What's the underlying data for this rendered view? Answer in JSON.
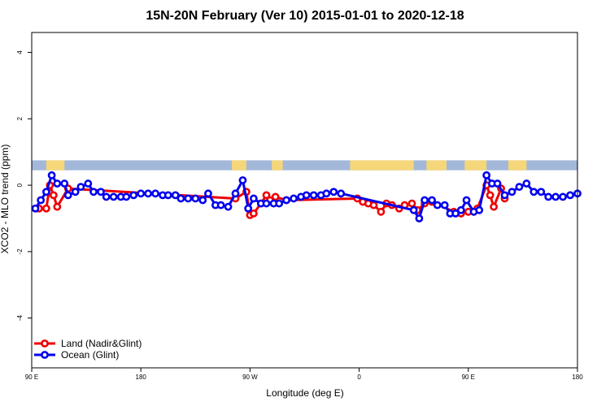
{
  "chart_data": {
    "type": "line",
    "title": "15N-20N February (Ver 10)   2015-01-01 to 2020-12-18",
    "xlabel": "Longitude (deg E)",
    "ylabel": "XCO2 - MLO trend (ppm)",
    "xlim": [
      90,
      390
    ],
    "ylim": [
      -5.5,
      4.6
    ],
    "x_ticks": [
      {
        "value": 90,
        "label": "90 E"
      },
      {
        "value": 150,
        "label": "180"
      },
      {
        "value": 210,
        "label": "90 W"
      },
      {
        "value": 270,
        "label": "0"
      },
      {
        "value": 330,
        "label": "90 E"
      },
      {
        "value": 390,
        "label": "180"
      }
    ],
    "y_ticks": [
      {
        "value": -4,
        "label": "-4"
      },
      {
        "value": -2,
        "label": "-2"
      },
      {
        "value": 0,
        "label": "0"
      },
      {
        "value": 2,
        "label": "2"
      },
      {
        "value": 4,
        "label": "4"
      }
    ],
    "grid": false,
    "legend_position": "bottom-left",
    "land_band": {
      "y_range": [
        0.45,
        0.75
      ],
      "ocean_color": "#a3b8d9",
      "land_color": "#f5d77a",
      "land_segments": [
        [
          98,
          108
        ],
        [
          200,
          208
        ],
        [
          222,
          228
        ],
        [
          265,
          300
        ],
        [
          307,
          318
        ],
        [
          328,
          340
        ],
        [
          352,
          362
        ]
      ]
    },
    "series": [
      {
        "name": "Land (Nadir&Glint)",
        "color": "#ee0000",
        "x": [
          94,
          98,
          100,
          102,
          104,
          110,
          202,
          208,
          210,
          212,
          216,
          219,
          221,
          224,
          230,
          269,
          272,
          275,
          278,
          282,
          285,
          288,
          292,
          295,
          299,
          302,
          306,
          310,
          322,
          326,
          330,
          335,
          340,
          342,
          344,
          348,
          350
        ],
        "values": [
          -0.7,
          -0.7,
          0.0,
          -0.3,
          -0.65,
          -0.1,
          -0.4,
          -0.2,
          -0.9,
          -0.85,
          -0.55,
          -0.3,
          -0.45,
          -0.35,
          -0.45,
          -0.4,
          -0.5,
          -0.55,
          -0.6,
          -0.8,
          -0.55,
          -0.6,
          -0.7,
          -0.6,
          -0.55,
          -0.75,
          -0.55,
          -0.5,
          -0.8,
          -0.85,
          -0.8,
          -0.7,
          0.0,
          -0.3,
          -0.65,
          -0.1,
          -0.4
        ]
      },
      {
        "name": "Ocean (Glint)",
        "color": "#0000ee",
        "x": [
          92,
          95,
          98,
          101,
          104,
          108,
          110,
          114,
          117,
          121,
          124,
          128,
          131,
          135,
          139,
          142,
          146,
          150,
          154,
          158,
          162,
          165,
          169,
          172,
          176,
          180,
          184,
          187,
          191,
          194,
          198,
          202,
          206,
          209,
          212,
          216,
          219,
          223,
          226,
          230,
          234,
          238,
          241,
          245,
          249,
          252,
          256,
          260,
          300,
          303,
          306,
          310,
          313,
          317,
          320,
          323,
          326,
          329,
          333,
          336,
          340,
          343,
          346,
          350,
          354,
          358,
          362,
          366,
          370,
          374,
          378,
          382,
          386,
          390
        ],
        "values": [
          -0.7,
          -0.45,
          -0.2,
          0.3,
          0.05,
          0.05,
          -0.3,
          -0.2,
          -0.05,
          0.05,
          -0.2,
          -0.2,
          -0.35,
          -0.35,
          -0.35,
          -0.35,
          -0.3,
          -0.25,
          -0.25,
          -0.25,
          -0.3,
          -0.3,
          -0.3,
          -0.4,
          -0.4,
          -0.4,
          -0.45,
          -0.25,
          -0.6,
          -0.6,
          -0.65,
          -0.25,
          0.15,
          -0.7,
          -0.4,
          -0.55,
          -0.55,
          -0.55,
          -0.55,
          -0.45,
          -0.4,
          -0.35,
          -0.3,
          -0.3,
          -0.3,
          -0.25,
          -0.2,
          -0.25,
          -0.75,
          -1.0,
          -0.45,
          -0.45,
          -0.6,
          -0.6,
          -0.85,
          -0.85,
          -0.75,
          -0.45,
          -0.8,
          -0.75,
          0.3,
          0.05,
          0.05,
          -0.3,
          -0.2,
          -0.05,
          0.05,
          -0.2,
          -0.2,
          -0.35,
          -0.35,
          -0.35,
          -0.3,
          -0.25
        ]
      }
    ]
  }
}
